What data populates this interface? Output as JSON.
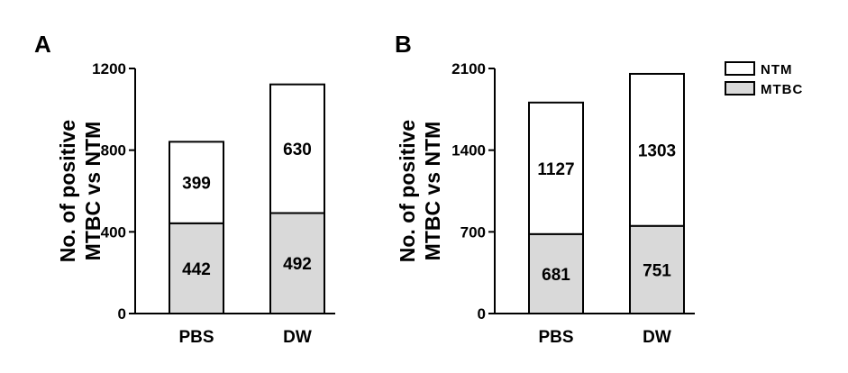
{
  "chart_data": [
    {
      "panel": "A",
      "type": "bar",
      "stacked": true,
      "ylabel": [
        "No. of positive",
        "MTBC vs NTM"
      ],
      "categories": [
        "PBS",
        "DW"
      ],
      "series": [
        {
          "name": "MTBC",
          "values": [
            442,
            492
          ],
          "color": "#d9d9d9"
        },
        {
          "name": "NTM",
          "values": [
            399,
            630
          ],
          "color": "#ffffff"
        }
      ],
      "ylim": [
        0,
        1200
      ],
      "yticks": [
        0,
        400,
        800,
        1200
      ],
      "grid": false
    },
    {
      "panel": "B",
      "type": "bar",
      "stacked": true,
      "ylabel": [
        "No. of positive",
        "MTBC vs NTM"
      ],
      "categories": [
        "PBS",
        "DW"
      ],
      "series": [
        {
          "name": "MTBC",
          "values": [
            681,
            751
          ],
          "color": "#d9d9d9"
        },
        {
          "name": "NTM",
          "values": [
            1127,
            1303
          ],
          "color": "#ffffff"
        }
      ],
      "ylim": [
        0,
        2100
      ],
      "yticks": [
        0,
        700,
        1400,
        2100
      ],
      "grid": false
    }
  ],
  "legend": {
    "placement": "top-right",
    "entries": [
      {
        "label": "NTM",
        "color": "#ffffff"
      },
      {
        "label": "MTBC",
        "color": "#d9d9d9"
      }
    ]
  }
}
